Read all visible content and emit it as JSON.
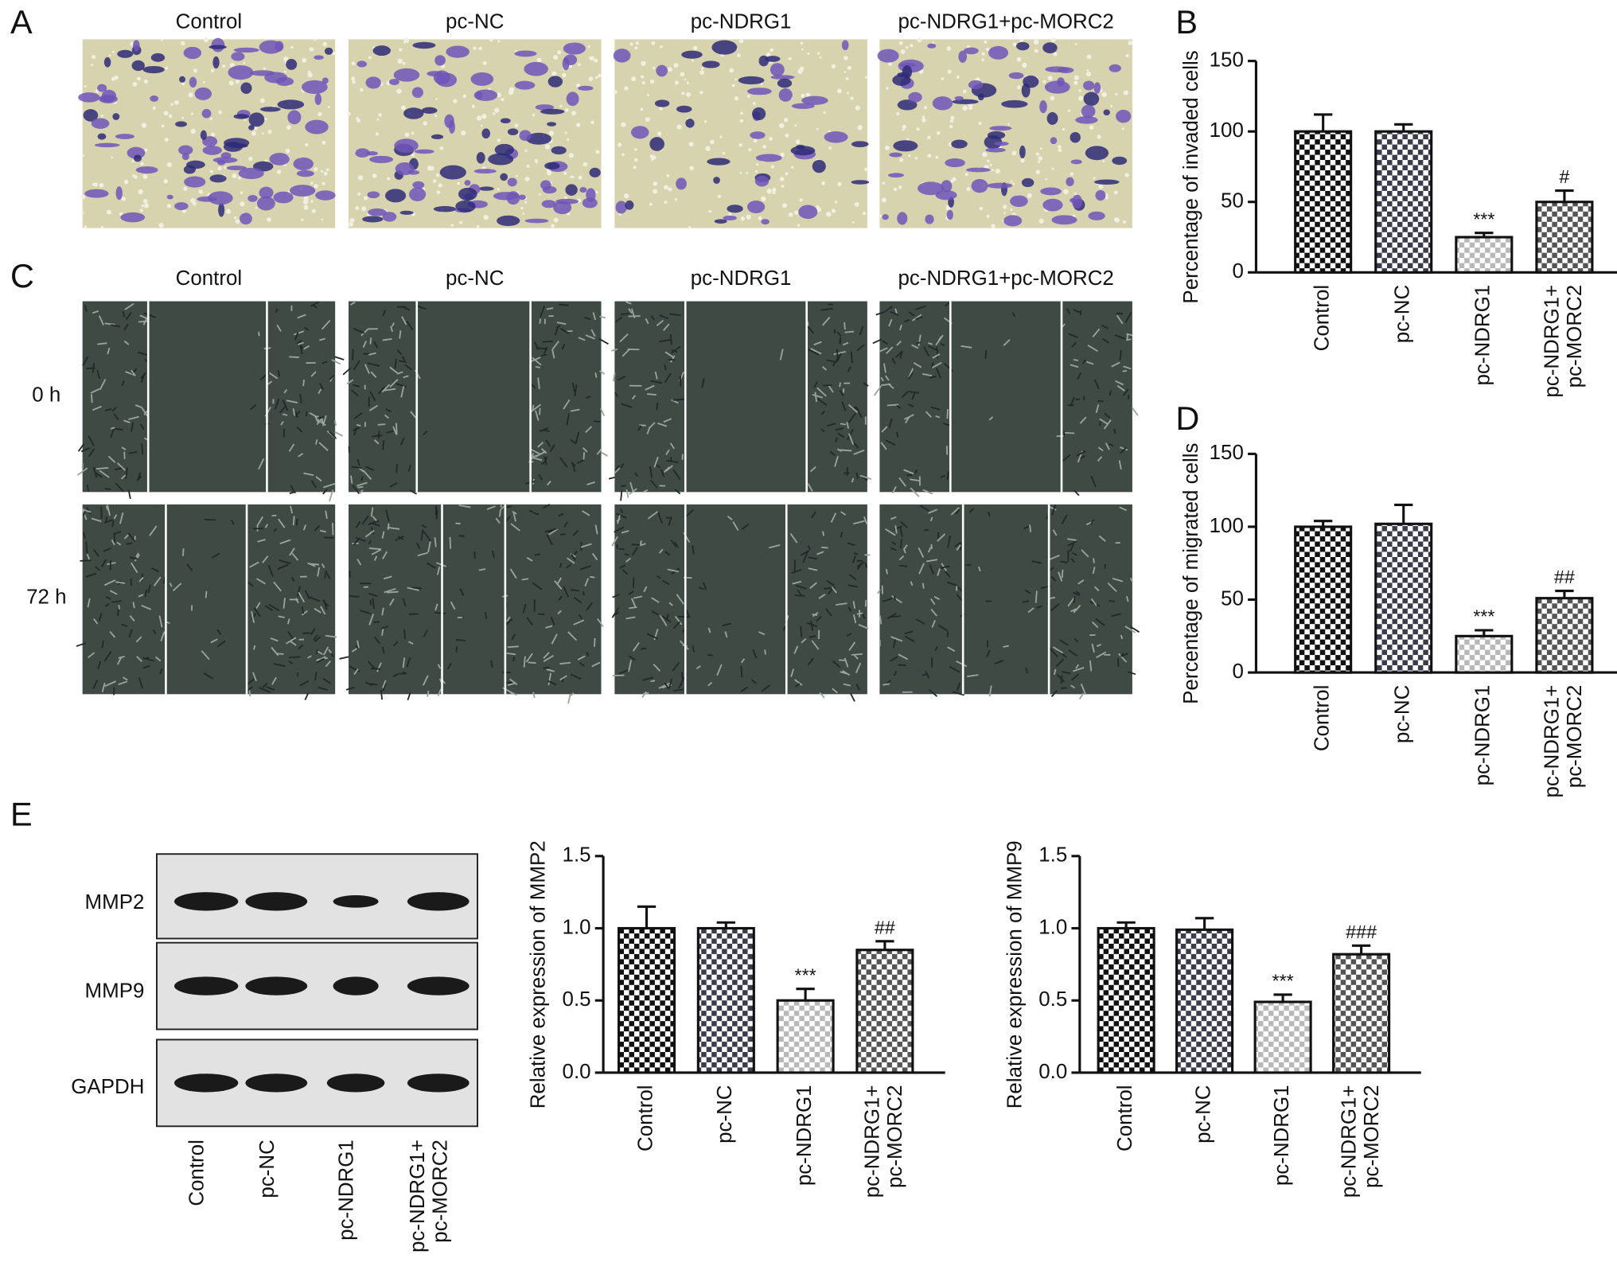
{
  "panel_labels": [
    "A",
    "B",
    "C",
    "D",
    "E"
  ],
  "panel_a": {
    "columns": [
      "Control",
      "pc-NC",
      "pc-NDRG1",
      "pc-NDRG1+pc-MORC2"
    ]
  },
  "panel_c": {
    "columns": [
      "Control",
      "pc-NC",
      "pc-NDRG1",
      "pc-NDRG1+pc-MORC2"
    ],
    "rows": [
      "0 h",
      "72 h"
    ]
  },
  "panel_e_blot": {
    "rows": [
      "MMP2",
      "MMP9",
      "GAPDH"
    ],
    "categories": [
      "Control",
      "pc-NC",
      "pc-NDRG1",
      "pc-NDRG1+\npc-MORC2"
    ]
  },
  "chart_data": [
    {
      "type": "bar",
      "y_label": "Percentage of invaded cells",
      "categories": [
        "Control",
        "pc-NC",
        "pc-NDRG1",
        "pc-NDRG1+\npc-MORC2"
      ],
      "values": [
        100,
        100,
        25,
        50
      ],
      "errors": [
        12,
        5,
        3,
        8
      ],
      "annotations": [
        null,
        null,
        "***",
        "#"
      ],
      "colors": [
        "#111111",
        "#3b3b4c",
        "#b8b8b8",
        "#555555"
      ],
      "ylim": [
        0,
        150
      ],
      "yticks": [
        0,
        50,
        100,
        150
      ]
    },
    {
      "type": "bar",
      "y_label": "Percentage of migrated cells",
      "categories": [
        "Control",
        "pc-NC",
        "pc-NDRG1",
        "pc-NDRG1+\npc-MORC2"
      ],
      "values": [
        100,
        102,
        25,
        51
      ],
      "errors": [
        4,
        13,
        4,
        5
      ],
      "annotations": [
        null,
        null,
        "***",
        "##"
      ],
      "colors": [
        "#111111",
        "#3b3b4c",
        "#b8b8b8",
        "#555555"
      ],
      "ylim": [
        0,
        150
      ],
      "yticks": [
        0,
        50,
        100,
        150
      ]
    },
    {
      "type": "bar",
      "y_label": "Relative expression of MMP2",
      "categories": [
        "Control",
        "pc-NC",
        "pc-NDRG1",
        "pc-NDRG1+\npc-MORC2"
      ],
      "values": [
        1.0,
        1.0,
        0.5,
        0.85
      ],
      "errors": [
        0.15,
        0.04,
        0.08,
        0.06
      ],
      "annotations": [
        null,
        null,
        "***",
        "##"
      ],
      "colors": [
        "#111111",
        "#3b3b4c",
        "#b8b8b8",
        "#555555"
      ],
      "ylim": [
        0,
        1.5
      ],
      "yticks": [
        {
          "value": 0,
          "label": "0.0"
        },
        0.5,
        {
          "value": 1,
          "label": "1.0"
        },
        1.5
      ]
    },
    {
      "type": "bar",
      "y_label": "Relative expression of MMP9",
      "categories": [
        "Control",
        "pc-NC",
        "pc-NDRG1",
        "pc-NDRG1+\npc-MORC2"
      ],
      "values": [
        1.0,
        0.99,
        0.49,
        0.82
      ],
      "errors": [
        0.04,
        0.08,
        0.05,
        0.06
      ],
      "annotations": [
        null,
        null,
        "***",
        "###"
      ],
      "colors": [
        "#111111",
        "#3b3b4c",
        "#b8b8b8",
        "#555555"
      ],
      "ylim": [
        0,
        1.5
      ],
      "yticks": [
        {
          "value": 0,
          "label": "0.0"
        },
        0.5,
        {
          "value": 1,
          "label": "1.0"
        },
        1.5
      ]
    }
  ]
}
